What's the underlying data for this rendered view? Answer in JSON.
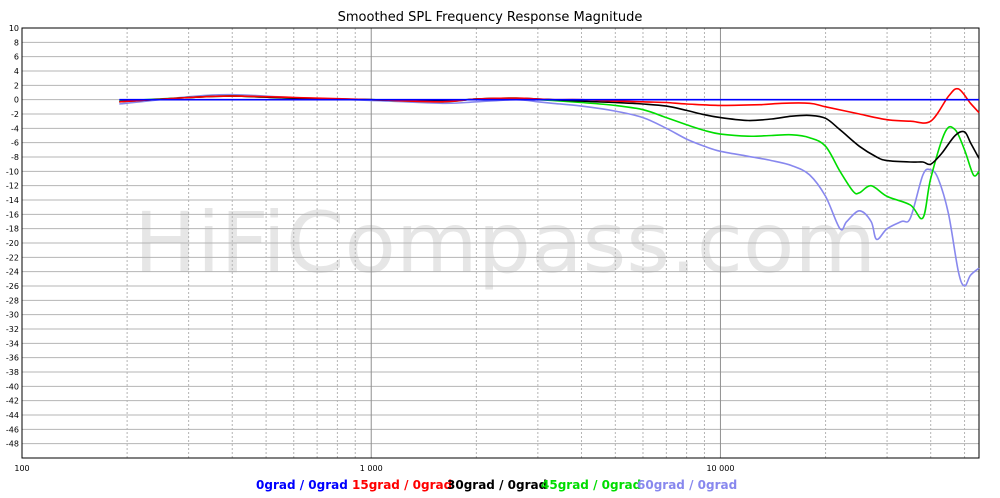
{
  "chart_data": {
    "type": "line",
    "title": "Smoothed SPL Frequency Response Magnitude",
    "watermark": "HiFiCompass.com",
    "x_scale": "log",
    "xlim": [
      100,
      55000
    ],
    "ylim": [
      -50,
      10
    ],
    "grid": true,
    "legend_position": "bottom",
    "x_ticks": [
      {
        "value": 100,
        "label": "100"
      },
      {
        "value": 1000,
        "label": "1 000"
      },
      {
        "value": 10000,
        "label": "10 000"
      }
    ],
    "y_ticks": [
      10,
      8,
      6,
      4,
      2,
      0,
      -2,
      -4,
      -6,
      -8,
      -10,
      -12,
      -14,
      -16,
      -18,
      -20,
      -22,
      -24,
      -26,
      -28,
      -30,
      -32,
      -34,
      -36,
      -38,
      -40,
      -42,
      -44,
      -46,
      -48
    ],
    "series": [
      {
        "name": "0grad / 0grad",
        "color": "#0000ff",
        "x": [
          190,
          55000
        ],
        "y": [
          0,
          0
        ]
      },
      {
        "name": "15grad / 0grad",
        "color": "#ff0000",
        "x": [
          190,
          300,
          400,
          600,
          1000,
          1600,
          2000,
          2600,
          3000,
          3300,
          4000,
          5000,
          6000,
          7000,
          8000,
          10000,
          13000,
          15000,
          18000,
          20000,
          25000,
          30000,
          35000,
          40000,
          45000,
          48000,
          52000,
          55000
        ],
        "y": [
          -0.3,
          0.3,
          0.5,
          0.3,
          0,
          -0.3,
          0.1,
          0.2,
          0.1,
          0,
          0,
          -0.2,
          -0.3,
          -0.4,
          -0.6,
          -0.8,
          -0.7,
          -0.5,
          -0.5,
          -1,
          -2,
          -2.8,
          -3,
          -3,
          0.5,
          1.5,
          -0.5,
          -1.8
        ]
      },
      {
        "name": "30grad / 0grad",
        "color": "#000000",
        "x": [
          190,
          300,
          400,
          600,
          1000,
          1600,
          2000,
          2600,
          3000,
          3300,
          4000,
          5000,
          6000,
          7000,
          8000,
          9000,
          10000,
          12000,
          14000,
          16000,
          18000,
          20000,
          22000,
          25000,
          28000,
          30000,
          35000,
          38000,
          40000,
          43000,
          47000,
          50000,
          52000,
          55000
        ],
        "y": [
          -0.3,
          0.3,
          0.5,
          0.2,
          0,
          -0.2,
          0.1,
          0.2,
          0.1,
          0,
          -0.2,
          -0.4,
          -0.6,
          -0.9,
          -1.5,
          -2.1,
          -2.5,
          -2.9,
          -2.7,
          -2.3,
          -2.2,
          -2.6,
          -4.2,
          -6.5,
          -8,
          -8.5,
          -8.7,
          -8.7,
          -9,
          -7.5,
          -5,
          -4.5,
          -6,
          -8.2
        ]
      },
      {
        "name": "45grad / 0grad",
        "color": "#00dd00",
        "x": [
          190,
          300,
          400,
          600,
          1000,
          1600,
          2000,
          2600,
          3000,
          3300,
          4000,
          5000,
          6000,
          7000,
          8000,
          9000,
          10000,
          12000,
          14000,
          16000,
          18000,
          20000,
          22000,
          24000,
          25000,
          27000,
          30000,
          35000,
          38000,
          40000,
          44000,
          47000,
          50000,
          53000,
          55000
        ],
        "y": [
          -0.2,
          0.3,
          0.5,
          0.2,
          0,
          -0.3,
          0.1,
          0.2,
          0,
          -0.1,
          -0.4,
          -0.8,
          -1.4,
          -2.5,
          -3.5,
          -4.3,
          -4.8,
          -5.1,
          -5,
          -4.9,
          -5.3,
          -6.5,
          -10,
          -12.8,
          -13,
          -12,
          -13.5,
          -14.7,
          -16.5,
          -11,
          -4.5,
          -4.2,
          -7,
          -10.5,
          -10
        ]
      },
      {
        "name": "60grad / 0grad",
        "color": "#8888ee",
        "x": [
          190,
          300,
          400,
          600,
          1000,
          1600,
          2000,
          2600,
          3000,
          3300,
          4000,
          5000,
          6000,
          7000,
          8000,
          9000,
          10000,
          12000,
          14000,
          16000,
          18000,
          20000,
          22000,
          23000,
          25000,
          27000,
          28000,
          30000,
          33000,
          35000,
          38000,
          40000,
          42000,
          45000,
          48000,
          50000,
          52000,
          55000
        ],
        "y": [
          -0.6,
          0.4,
          0.7,
          0.3,
          -0.1,
          -0.5,
          -0.3,
          0,
          -0.3,
          -0.5,
          -0.9,
          -1.6,
          -2.5,
          -4,
          -5.5,
          -6.5,
          -7.2,
          -7.9,
          -8.5,
          -9.2,
          -10.5,
          -13.5,
          -18,
          -17,
          -15.5,
          -17,
          -19.5,
          -18,
          -17,
          -16.5,
          -10.5,
          -9.8,
          -11,
          -16,
          -24,
          -26,
          -24.5,
          -23.5
        ]
      }
    ]
  }
}
